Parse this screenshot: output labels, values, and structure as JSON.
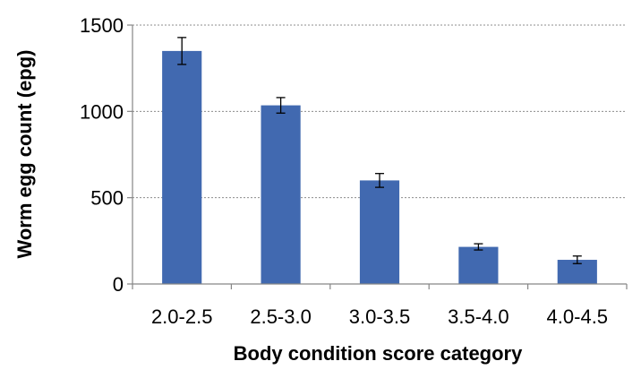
{
  "chart_data": {
    "type": "bar",
    "title": "",
    "xlabel": "Body condition score category",
    "ylabel": "Worm egg count (epg)",
    "categories": [
      "2.0-2.5",
      "2.5-3.0",
      "3.0-3.5",
      "3.5-4.0",
      "4.0-4.5"
    ],
    "values": [
      1350,
      1035,
      600,
      215,
      140
    ],
    "error": [
      78,
      45,
      40,
      18,
      22
    ],
    "ylim": [
      0,
      1500
    ],
    "yticks": [
      0,
      500,
      1000,
      1500
    ],
    "grid": true,
    "legend": "none",
    "bar_color": "#4169b0"
  }
}
